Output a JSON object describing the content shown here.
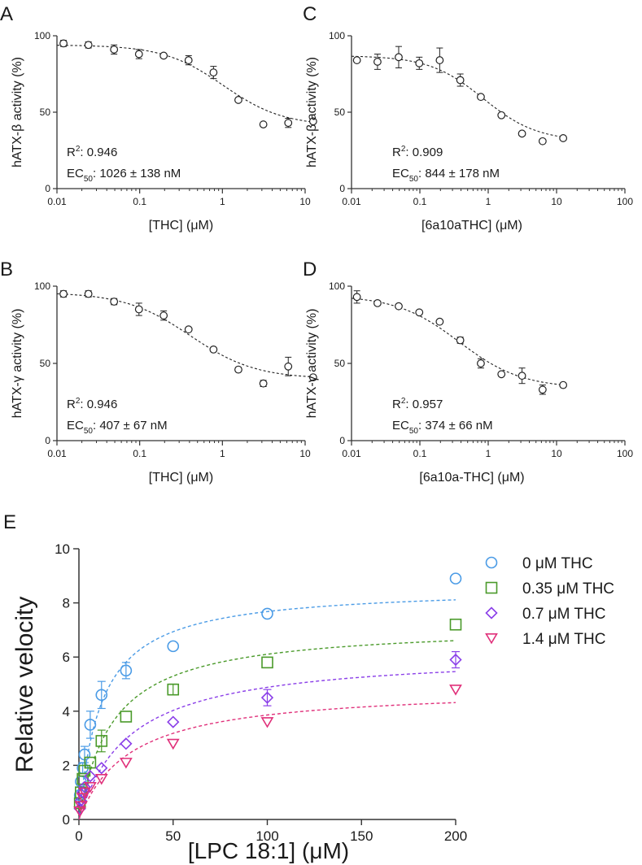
{
  "panels": [
    {
      "letter": "A",
      "type": "scatter",
      "xscale": "log",
      "xlim": [
        0.01,
        10
      ],
      "xticks": [
        0.01,
        0.1,
        1,
        10
      ],
      "xtick_labels": [
        "0.01",
        "0.1",
        "1",
        "10"
      ],
      "ylim": [
        0,
        100
      ],
      "yticks": [
        0,
        50,
        100
      ],
      "ytick_labels": [
        "0",
        "50",
        "100"
      ],
      "xlabel": "[THC] (μM)",
      "ylabel": "hATX-β activity (%)",
      "r2": "0.946",
      "ec50_value": "1026 ± 138 nM",
      "fit": {
        "top": 94,
        "bottom": 41,
        "ec50": 1.026,
        "hill": 1.2
      },
      "x": [
        0.012,
        0.024,
        0.049,
        0.098,
        0.195,
        0.39,
        0.78,
        1.56,
        3.125,
        6.25,
        12.5
      ],
      "y": [
        95,
        94,
        91,
        88,
        87,
        84,
        76,
        58,
        42,
        43,
        44
      ],
      "err": [
        2,
        2,
        3,
        3,
        1,
        3,
        4,
        1,
        1,
        3,
        1
      ]
    },
    {
      "letter": "C",
      "type": "scatter",
      "xscale": "log",
      "xlim": [
        0.01,
        100
      ],
      "xticks": [
        0.01,
        0.1,
        1,
        10,
        100
      ],
      "xtick_labels": [
        "0.01",
        "0.1",
        "1",
        "10",
        "100"
      ],
      "ylim": [
        0,
        100
      ],
      "yticks": [
        0,
        50,
        100
      ],
      "ytick_labels": [
        "0",
        "50",
        "100"
      ],
      "xlabel": "[6a10aTHC] (μM)",
      "ylabel": "hATX-β activity (%)",
      "r2": "0.909",
      "ec50_value": "844 ± 178 nM",
      "fit": {
        "top": 87,
        "bottom": 31,
        "ec50": 0.844,
        "hill": 1.1
      },
      "x": [
        0.012,
        0.024,
        0.049,
        0.098,
        0.195,
        0.39,
        0.78,
        1.56,
        3.125,
        6.25,
        12.5
      ],
      "y": [
        84,
        83,
        86,
        82,
        84,
        71,
        60,
        48,
        36,
        31,
        33
      ],
      "err": [
        1,
        5,
        7,
        4,
        8,
        4,
        1,
        1,
        1,
        1,
        1
      ]
    },
    {
      "letter": "B",
      "type": "scatter",
      "xscale": "log",
      "xlim": [
        0.01,
        10
      ],
      "xticks": [
        0.01,
        0.1,
        1,
        10
      ],
      "xtick_labels": [
        "0.01",
        "0.1",
        "1",
        "10"
      ],
      "ylim": [
        0,
        100
      ],
      "yticks": [
        0,
        50,
        100
      ],
      "ytick_labels": [
        "0",
        "50",
        "100"
      ],
      "xlabel": "[THC] (μM)",
      "ylabel": "hATX-γ activity (%)",
      "r2": "0.946",
      "ec50_value": "407 ± 67 nM",
      "fit": {
        "top": 96,
        "bottom": 40,
        "ec50": 0.407,
        "hill": 1.1
      },
      "x": [
        0.012,
        0.024,
        0.049,
        0.098,
        0.195,
        0.39,
        0.78,
        1.56,
        3.125,
        6.25,
        12.5
      ],
      "y": [
        95,
        95,
        90,
        85,
        81,
        72,
        59,
        46,
        37,
        48,
        41
      ],
      "err": [
        2,
        2,
        2,
        4,
        3,
        1,
        1,
        1,
        2,
        6,
        1
      ]
    },
    {
      "letter": "D",
      "type": "scatter",
      "xscale": "log",
      "xlim": [
        0.01,
        100
      ],
      "xticks": [
        0.01,
        0.1,
        1,
        10,
        100
      ],
      "xtick_labels": [
        "0.01",
        "0.1",
        "1",
        "10",
        "100"
      ],
      "ylim": [
        0,
        100
      ],
      "yticks": [
        0,
        50,
        100
      ],
      "ytick_labels": [
        "0",
        "50",
        "100"
      ],
      "xlabel": "[6a10a-THC] (μM)",
      "ylabel": "hATX-γ activity (%)",
      "r2": "0.957",
      "ec50_value": "374 ± 66 nM",
      "fit": {
        "top": 94,
        "bottom": 34,
        "ec50": 0.374,
        "hill": 0.95
      },
      "x": [
        0.012,
        0.024,
        0.049,
        0.098,
        0.195,
        0.39,
        0.78,
        1.56,
        3.125,
        6.25,
        12.5
      ],
      "y": [
        93,
        89,
        87,
        83,
        77,
        65,
        50,
        43,
        42,
        33,
        36
      ],
      "err": [
        4,
        1,
        1,
        1,
        1,
        2,
        3,
        1,
        5,
        3,
        1
      ]
    }
  ],
  "chart_data": [
    {
      "type": "scatter",
      "panel": "A",
      "xlabel": "[THC] (μM)",
      "ylabel": "hATX-β activity (%)",
      "xscale": "log",
      "xlim": [
        0.01,
        10
      ],
      "ylim": [
        0,
        100
      ],
      "x": [
        0.012,
        0.024,
        0.049,
        0.098,
        0.195,
        0.39,
        0.78,
        1.56,
        3.125,
        6.25,
        12.5
      ],
      "y": [
        95,
        94,
        91,
        88,
        87,
        84,
        76,
        58,
        42,
        43,
        44
      ]
    },
    {
      "type": "scatter",
      "panel": "C",
      "xlabel": "[6a10aTHC] (μM)",
      "ylabel": "hATX-β activity (%)",
      "xscale": "log",
      "xlim": [
        0.01,
        100
      ],
      "ylim": [
        0,
        100
      ],
      "x": [
        0.012,
        0.024,
        0.049,
        0.098,
        0.195,
        0.39,
        0.78,
        1.56,
        3.125,
        6.25,
        12.5
      ],
      "y": [
        84,
        83,
        86,
        82,
        84,
        71,
        60,
        48,
        36,
        31,
        33
      ]
    },
    {
      "type": "scatter",
      "panel": "B",
      "xlabel": "[THC] (μM)",
      "ylabel": "hATX-γ activity (%)",
      "xscale": "log",
      "xlim": [
        0.01,
        10
      ],
      "ylim": [
        0,
        100
      ],
      "x": [
        0.012,
        0.024,
        0.049,
        0.098,
        0.195,
        0.39,
        0.78,
        1.56,
        3.125,
        6.25,
        12.5
      ],
      "y": [
        95,
        95,
        90,
        85,
        81,
        72,
        59,
        46,
        37,
        48,
        41
      ]
    },
    {
      "type": "scatter",
      "panel": "D",
      "xlabel": "[6a10a-THC] (μM)",
      "ylabel": "hATX-γ activity (%)",
      "xscale": "log",
      "xlim": [
        0.01,
        100
      ],
      "ylim": [
        0,
        100
      ],
      "x": [
        0.012,
        0.024,
        0.049,
        0.098,
        0.195,
        0.39,
        0.78,
        1.56,
        3.125,
        6.25,
        12.5
      ],
      "y": [
        93,
        89,
        87,
        83,
        77,
        65,
        50,
        43,
        42,
        33,
        36
      ]
    },
    {
      "type": "scatter",
      "panel": "E",
      "xlabel": "[LPC 18:1] (μM)",
      "ylabel": "Relative velocity",
      "xlim": [
        0,
        200
      ],
      "ylim": [
        0,
        10
      ],
      "x": [
        0.5,
        1,
        2,
        3,
        6,
        12,
        25,
        50,
        100,
        200
      ],
      "series": [
        {
          "name": "0 μM THC",
          "values": [
            0.9,
            1.4,
            1.9,
            2.4,
            3.5,
            4.6,
            5.5,
            6.4,
            7.6,
            8.9
          ]
        },
        {
          "name": "0.35 μM THC",
          "values": [
            0.6,
            1.0,
            1.5,
            1.8,
            2.1,
            2.9,
            3.8,
            4.8,
            5.8,
            7.2
          ]
        },
        {
          "name": "0.7 μM THC",
          "values": [
            0.4,
            0.7,
            1.0,
            1.2,
            1.6,
            1.9,
            2.8,
            3.6,
            4.5,
            5.9
          ]
        },
        {
          "name": "1.4 μM THC",
          "values": [
            0.3,
            0.5,
            0.8,
            1.0,
            1.2,
            1.5,
            2.1,
            2.8,
            3.6,
            4.8
          ]
        }
      ]
    }
  ],
  "panel_e": {
    "letter": "E",
    "xlabel": "[LPC 18:1] (μM)",
    "ylabel": "Relative velocity",
    "xlim": [
      0,
      200
    ],
    "ylim": [
      0,
      10
    ],
    "xticks": [
      0,
      50,
      100,
      150,
      200
    ],
    "xtick_labels": [
      "0",
      "50",
      "100",
      "150",
      "200"
    ],
    "yticks": [
      0,
      2,
      4,
      6,
      8,
      10
    ],
    "ytick_labels": [
      "0",
      "2",
      "4",
      "6",
      "8",
      "10"
    ],
    "x": [
      0.5,
      1,
      2,
      3,
      6,
      12,
      25,
      50,
      100,
      200
    ],
    "series": [
      {
        "name": "0 μM THC",
        "color": "#4a9be6",
        "marker": "circle",
        "vmax": 8.6,
        "km": 12,
        "values": [
          0.9,
          1.4,
          1.9,
          2.4,
          3.5,
          4.6,
          5.5,
          6.4,
          7.6,
          8.9
        ],
        "err": [
          0.1,
          0.1,
          0.2,
          0.3,
          0.5,
          0.5,
          0.3,
          0.1,
          0.1,
          0.1
        ]
      },
      {
        "name": "0.35 μM THC",
        "color": "#4a9a2a",
        "marker": "square",
        "vmax": 7.2,
        "km": 18,
        "values": [
          0.6,
          1.0,
          1.5,
          1.8,
          2.1,
          2.9,
          3.8,
          4.8,
          5.8,
          7.2
        ],
        "err": [
          0.1,
          0.1,
          0.1,
          0.1,
          0.1,
          0.4,
          0.1,
          0.2,
          0.1,
          0.1
        ]
      },
      {
        "name": "0.7 μM THC",
        "color": "#8a3ee8",
        "marker": "diamond",
        "vmax": 6.2,
        "km": 27,
        "values": [
          0.4,
          0.7,
          1.0,
          1.2,
          1.6,
          1.9,
          2.8,
          3.6,
          4.5,
          5.9
        ],
        "err": [
          0.1,
          0.1,
          0.1,
          0.1,
          0.1,
          0.1,
          0.1,
          0.1,
          0.3,
          0.3
        ]
      },
      {
        "name": "1.4 μM THC",
        "color": "#e0307a",
        "marker": "triangle",
        "vmax": 4.9,
        "km": 27,
        "values": [
          0.3,
          0.5,
          0.8,
          1.0,
          1.2,
          1.5,
          2.1,
          2.8,
          3.6,
          4.8
        ],
        "err": [
          0.1,
          0.1,
          0.1,
          0.1,
          0.1,
          0.1,
          0.1,
          0.1,
          0.1,
          0.1
        ]
      }
    ]
  },
  "stat_labels": {
    "r2_prefix": "R",
    "r2_sup": "2",
    "ec50_prefix": "EC",
    "ec50_sub": "50"
  }
}
